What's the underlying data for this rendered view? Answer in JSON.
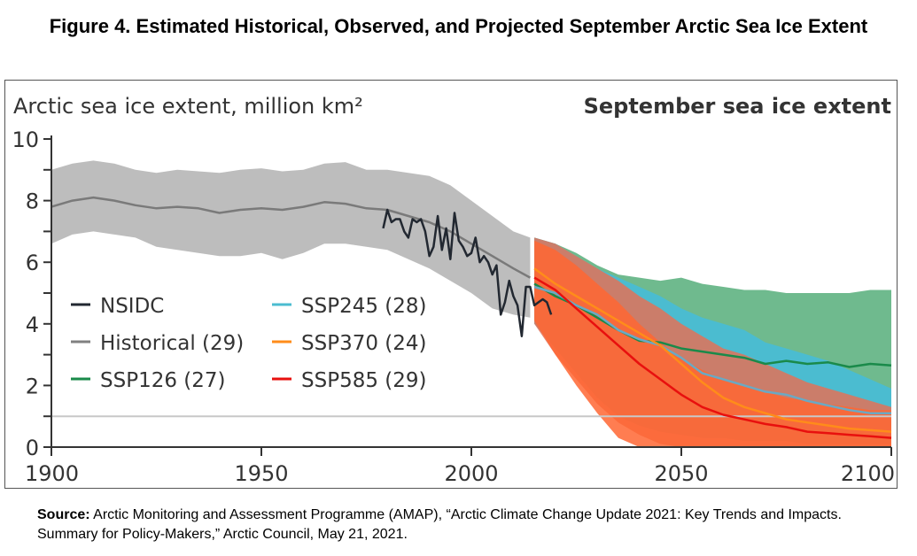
{
  "figure": {
    "title": "Figure 4. Estimated Historical, Observed, and Projected September Arctic Sea Ice Extent",
    "source_label": "Source:",
    "source_text": " Arctic Monitoring and Assessment Programme (AMAP), “Arctic Climate Change Update 2021: Key Trends and Impacts. Summary for Policy-Makers,” Arctic Council, May 21, 2021."
  },
  "chart_data": {
    "type": "line",
    "title": "September sea ice extent",
    "ylabel": "Arctic sea ice extent, million km²",
    "xlabel": "",
    "xlim": [
      1900,
      2100
    ],
    "ylim": [
      0,
      10
    ],
    "xticks": [
      1900,
      1950,
      2000,
      2050,
      2100
    ],
    "yticks": [
      0,
      2,
      4,
      6,
      8,
      10
    ],
    "yminor_ticks": [
      1,
      3,
      5,
      7,
      9
    ],
    "reference_line": 1,
    "grid": false,
    "legend_position": "center-left",
    "legend": [
      {
        "label": "NSIDC",
        "color": "#222831"
      },
      {
        "label": "Historical (29)",
        "color": "#808080"
      },
      {
        "label": "SSP126 (27)",
        "color": "#1a8a4a"
      },
      {
        "label": "SSP245 (28)",
        "color": "#4bbcd0"
      },
      {
        "label": "SSP370 (24)",
        "color": "#ff8c1a"
      },
      {
        "label": "SSP585 (29)",
        "color": "#e8100e"
      }
    ],
    "series": [
      {
        "name": "Historical (29)",
        "color": "#7a7a7a",
        "band_color": "#bdbdbd",
        "x": [
          1900,
          1905,
          1910,
          1915,
          1920,
          1925,
          1930,
          1935,
          1940,
          1945,
          1950,
          1955,
          1960,
          1965,
          1970,
          1975,
          1980,
          1985,
          1990,
          1995,
          2000,
          2005,
          2010,
          2014
        ],
        "mean": [
          7.8,
          8.0,
          8.1,
          8.0,
          7.85,
          7.75,
          7.8,
          7.75,
          7.6,
          7.7,
          7.75,
          7.7,
          7.8,
          7.95,
          7.9,
          7.75,
          7.7,
          7.5,
          7.3,
          7.0,
          6.6,
          6.2,
          5.8,
          5.5
        ],
        "upper": [
          9.0,
          9.2,
          9.3,
          9.2,
          9.0,
          8.9,
          9.0,
          8.95,
          8.9,
          9.0,
          9.05,
          8.95,
          9.0,
          9.2,
          9.25,
          9.0,
          9.0,
          8.9,
          8.8,
          8.5,
          8.0,
          7.5,
          7.0,
          6.8
        ],
        "lower": [
          6.6,
          6.9,
          7.0,
          6.9,
          6.8,
          6.5,
          6.4,
          6.3,
          6.2,
          6.2,
          6.3,
          6.1,
          6.3,
          6.6,
          6.6,
          6.5,
          6.4,
          6.1,
          5.8,
          5.4,
          5.0,
          4.5,
          4.3,
          4.2
        ]
      },
      {
        "name": "NSIDC",
        "color": "#222831",
        "x": [
          1979,
          1980,
          1981,
          1982,
          1983,
          1984,
          1985,
          1986,
          1987,
          1988,
          1989,
          1990,
          1991,
          1992,
          1993,
          1994,
          1995,
          1996,
          1997,
          1998,
          1999,
          2000,
          2001,
          2002,
          2003,
          2004,
          2005,
          2006,
          2007,
          2008,
          2009,
          2010,
          2011,
          2012,
          2013,
          2014,
          2015,
          2016,
          2017,
          2018,
          2019
        ],
        "values": [
          7.1,
          7.7,
          7.3,
          7.4,
          7.4,
          7.0,
          6.8,
          7.4,
          7.3,
          7.4,
          7.0,
          6.2,
          6.5,
          7.5,
          6.4,
          7.1,
          6.1,
          7.6,
          6.7,
          6.5,
          6.2,
          6.3,
          6.8,
          6.0,
          6.2,
          6.0,
          5.6,
          5.9,
          4.3,
          4.7,
          5.4,
          4.9,
          4.6,
          3.6,
          5.2,
          5.2,
          4.6,
          4.7,
          4.8,
          4.7,
          4.3
        ]
      },
      {
        "name": "SSP126 (27)",
        "color": "#1a8a4a",
        "band_color": "#6fba8e",
        "x": [
          2015,
          2020,
          2025,
          2030,
          2035,
          2040,
          2045,
          2050,
          2055,
          2060,
          2065,
          2070,
          2075,
          2080,
          2085,
          2090,
          2095,
          2100
        ],
        "mean": [
          5.3,
          4.9,
          4.6,
          4.2,
          3.8,
          3.45,
          3.4,
          3.2,
          3.1,
          3.0,
          2.9,
          2.7,
          2.8,
          2.7,
          2.75,
          2.6,
          2.7,
          2.65
        ],
        "upper": [
          6.8,
          6.6,
          6.3,
          5.9,
          5.6,
          5.5,
          5.4,
          5.5,
          5.3,
          5.2,
          5.1,
          5.1,
          5.0,
          5.0,
          5.0,
          5.0,
          5.1,
          5.1
        ],
        "lower": [
          4.2,
          3.3,
          2.5,
          1.8,
          1.3,
          1.1,
          1.0,
          0.9,
          0.8,
          0.7,
          0.7,
          0.6,
          0.6,
          0.6,
          0.6,
          0.6,
          0.6,
          0.6
        ]
      },
      {
        "name": "SSP245 (28)",
        "color": "#6aa9c4",
        "band_color": "#4bbcd0",
        "x": [
          2015,
          2020,
          2025,
          2030,
          2035,
          2040,
          2045,
          2050,
          2055,
          2060,
          2065,
          2070,
          2075,
          2080,
          2085,
          2090,
          2095,
          2100
        ],
        "mean": [
          5.2,
          5.0,
          4.6,
          4.3,
          3.8,
          3.5,
          3.3,
          2.9,
          2.4,
          2.2,
          2.0,
          1.8,
          1.7,
          1.5,
          1.35,
          1.2,
          1.1,
          1.1
        ],
        "upper": [
          6.8,
          6.6,
          6.2,
          5.8,
          5.5,
          5.2,
          4.9,
          4.5,
          4.2,
          4.0,
          3.8,
          3.4,
          3.2,
          3.0,
          2.8,
          2.5,
          2.2,
          1.9
        ],
        "lower": [
          4.0,
          3.2,
          2.4,
          1.6,
          1.0,
          0.7,
          0.5,
          0.4,
          0.3,
          0.3,
          0.2,
          0.2,
          0.2,
          0.1,
          0.1,
          0.1,
          0.1,
          0.1
        ]
      },
      {
        "name": "SSP370 (24)",
        "color": "#ff8c1a",
        "band_color": "#e27258",
        "x": [
          2015,
          2020,
          2025,
          2030,
          2035,
          2040,
          2045,
          2050,
          2055,
          2060,
          2065,
          2070,
          2075,
          2080,
          2085,
          2090,
          2095,
          2100
        ],
        "mean": [
          5.8,
          5.3,
          4.9,
          4.5,
          4.1,
          3.7,
          3.3,
          2.7,
          2.1,
          1.6,
          1.3,
          1.1,
          0.9,
          0.8,
          0.7,
          0.6,
          0.55,
          0.5
        ],
        "upper": [
          6.8,
          6.6,
          6.2,
          5.8,
          5.4,
          4.9,
          4.5,
          4.0,
          3.6,
          3.2,
          3.0,
          2.7,
          2.4,
          2.1,
          1.9,
          1.7,
          1.5,
          1.3
        ],
        "lower": [
          4.0,
          3.0,
          2.2,
          1.4,
          0.8,
          0.4,
          0.1,
          0.0,
          0.0,
          0.0,
          0.0,
          0.0,
          0.0,
          0.0,
          0.0,
          0.0,
          0.0,
          0.0
        ]
      },
      {
        "name": "SSP585 (29)",
        "color": "#e8100e",
        "band_color": "#ff6633",
        "x": [
          2015,
          2020,
          2025,
          2030,
          2035,
          2040,
          2045,
          2050,
          2055,
          2060,
          2065,
          2070,
          2075,
          2080,
          2085,
          2090,
          2095,
          2100
        ],
        "mean": [
          5.5,
          5.1,
          4.5,
          3.9,
          3.3,
          2.7,
          2.2,
          1.7,
          1.3,
          1.05,
          0.9,
          0.75,
          0.65,
          0.5,
          0.45,
          0.4,
          0.35,
          0.3
        ],
        "upper": [
          6.7,
          6.4,
          5.9,
          5.3,
          4.7,
          4.0,
          3.4,
          2.9,
          2.5,
          2.2,
          2.0,
          1.8,
          1.6,
          1.5,
          1.4,
          1.3,
          1.2,
          1.2
        ],
        "lower": [
          4.1,
          3.0,
          2.0,
          1.1,
          0.3,
          0.0,
          0.0,
          0.0,
          0.0,
          0.0,
          0.0,
          0.0,
          0.0,
          0.0,
          0.0,
          0.0,
          0.0,
          0.0
        ]
      }
    ]
  }
}
